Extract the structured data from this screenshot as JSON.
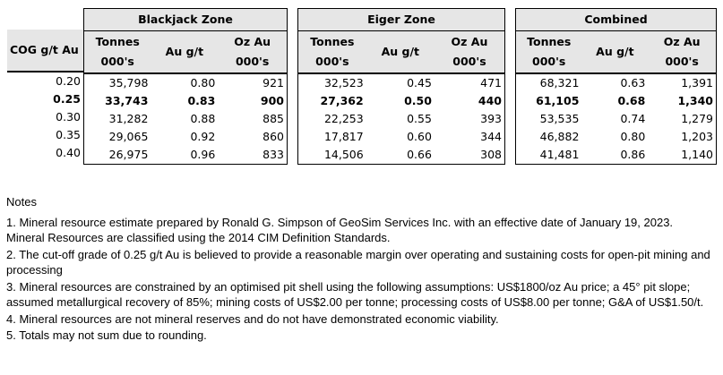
{
  "table": {
    "cog_header": "COG g/t Au",
    "zones": [
      {
        "name": "Blackjack Zone",
        "columns": [
          [
            "Tonnes",
            "000's"
          ],
          [
            "Au g/t"
          ],
          [
            "Oz Au",
            "000's"
          ]
        ],
        "rows": [
          [
            "35,798",
            "0.80",
            "921"
          ],
          [
            "33,743",
            "0.83",
            "900"
          ],
          [
            "31,282",
            "0.88",
            "885"
          ],
          [
            "29,065",
            "0.92",
            "860"
          ],
          [
            "26,975",
            "0.96",
            "833"
          ]
        ]
      },
      {
        "name": "Eiger Zone",
        "columns": [
          [
            "Tonnes",
            "000's"
          ],
          [
            "Au g/t"
          ],
          [
            "Oz Au",
            "000's"
          ]
        ],
        "rows": [
          [
            "32,523",
            "0.45",
            "471"
          ],
          [
            "27,362",
            "0.50",
            "440"
          ],
          [
            "22,253",
            "0.55",
            "393"
          ],
          [
            "17,817",
            "0.60",
            "344"
          ],
          [
            "14,506",
            "0.66",
            "308"
          ]
        ]
      },
      {
        "name": "Combined",
        "columns": [
          [
            "Tonnes",
            "000's"
          ],
          [
            "Au g/t"
          ],
          [
            "Oz Au",
            "000's"
          ]
        ],
        "rows": [
          [
            "68,321",
            "0.63",
            "1,391"
          ],
          [
            "61,105",
            "0.68",
            "1,340"
          ],
          [
            "53,535",
            "0.74",
            "1,279"
          ],
          [
            "46,882",
            "0.80",
            "1,203"
          ],
          [
            "41,481",
            "0.86",
            "1,140"
          ]
        ]
      }
    ],
    "cog_values": [
      "0.20",
      "0.25",
      "0.30",
      "0.35",
      "0.40"
    ],
    "bold_row_index": 1
  },
  "notes": {
    "title": "Notes",
    "items": [
      "1. Mineral resource estimate prepared by Ronald G. Simpson of GeoSim Services Inc. with an effective date of January 19, 2023. Mineral Resources are classified using the 2014 CIM Definition Standards.",
      "2. The cut-off grade of 0.25 g/t Au is believed to provide a reasonable margin over operating and sustaining costs for open-pit mining and processing",
      "3. Mineral resources are constrained by an optimised pit shell using the following assumptions: US$1800/oz Au price; a 45° pit slope; assumed metallurgical recovery of 85%; mining costs of US$2.00 per tonne; processing costs of US$8.00 per tonne; G&A of US$1.50/t.",
      "4. Mineral resources are not mineral reserves and do not have demonstrated economic viability.",
      "5. Totals may not sum due to rounding."
    ]
  }
}
